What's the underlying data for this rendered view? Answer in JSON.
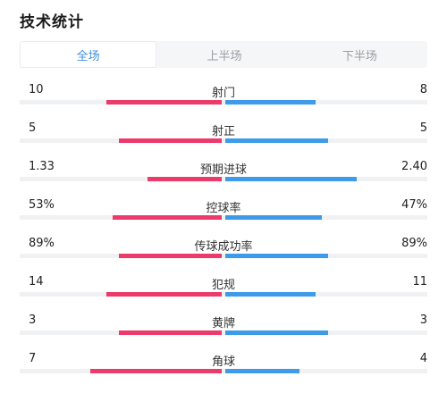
{
  "title": "技术统计",
  "tabs": [
    "全场",
    "上半场",
    "下半场"
  ],
  "active_tab": 0,
  "colors": {
    "home": "#ec3a6b",
    "away": "#3d9be9",
    "active_tab_text": "#3d8fe0"
  },
  "stats": [
    {
      "label": "射门",
      "home": "10",
      "away": "8",
      "home_share": 0.56,
      "away_share": 0.44
    },
    {
      "label": "射正",
      "home": "5",
      "away": "5",
      "home_share": 0.5,
      "away_share": 0.5
    },
    {
      "label": "预期进球",
      "home": "1.33",
      "away": "2.40",
      "home_share": 0.36,
      "away_share": 0.64
    },
    {
      "label": "控球率",
      "home": "53%",
      "away": "47%",
      "home_share": 0.53,
      "away_share": 0.47
    },
    {
      "label": "传球成功率",
      "home": "89%",
      "away": "89%",
      "home_share": 0.5,
      "away_share": 0.5
    },
    {
      "label": "犯规",
      "home": "14",
      "away": "11",
      "home_share": 0.56,
      "away_share": 0.44
    },
    {
      "label": "黄牌",
      "home": "3",
      "away": "3",
      "home_share": 0.5,
      "away_share": 0.5
    },
    {
      "label": "角球",
      "home": "7",
      "away": "4",
      "home_share": 0.64,
      "away_share": 0.36
    }
  ]
}
